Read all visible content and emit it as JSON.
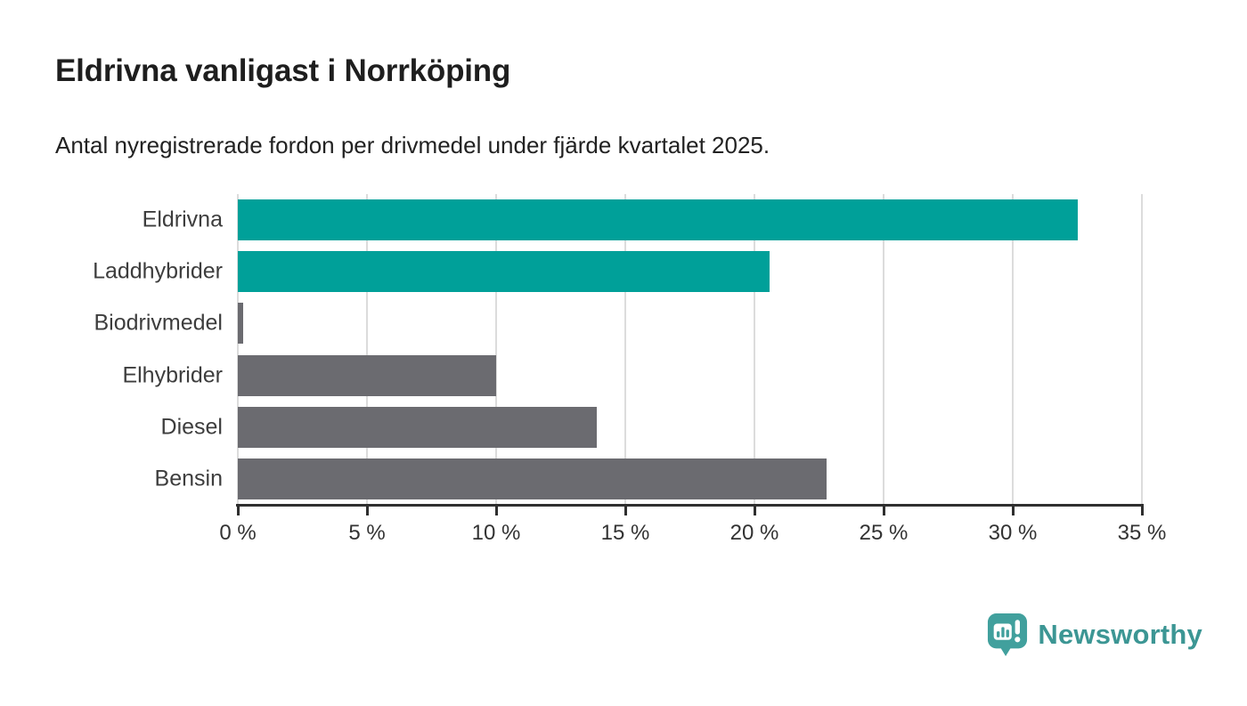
{
  "header": {
    "title": "Eldrivna vanligast i Norrköping",
    "subtitle": "Antal nyregistrerade fordon per drivmedel under fjärde kvartalet 2025."
  },
  "chart_data": {
    "type": "bar",
    "orientation": "horizontal",
    "title": "Eldrivna vanligast i Norrköping",
    "subtitle": "Antal nyregistrerade fordon per drivmedel under fjärde kvartalet 2025.",
    "categories": [
      "Eldrivna",
      "Laddhybrider",
      "Biodrivmedel",
      "Elhybrider",
      "Diesel",
      "Bensin"
    ],
    "values": [
      32.5,
      20.6,
      0.2,
      10.0,
      13.9,
      22.8
    ],
    "value_unit": "%",
    "bar_colors": [
      "#00a099",
      "#00a099",
      "#6b6b70",
      "#6b6b70",
      "#6b6b70",
      "#6b6b70"
    ],
    "xlabel": "",
    "ylabel": "",
    "xlim": [
      0,
      35
    ],
    "x_ticks": [
      0,
      5,
      10,
      15,
      20,
      25,
      30,
      35
    ],
    "x_tick_labels": [
      "0 %",
      "5 %",
      "10 %",
      "15 %",
      "20 %",
      "25 %",
      "30 %",
      "35 %"
    ],
    "grid": "vertical-gridlines-on",
    "legend": "none"
  },
  "branding": {
    "logo_text": "Newsworthy",
    "logo_icon": "newsworthy-pin-barchart-icon"
  },
  "colors": {
    "accent_teal": "#00a099",
    "bar_gray": "#6b6b70",
    "gridline": "#dcdcdc",
    "axis": "#2f2f2f",
    "title_text": "#1e1e1e",
    "label_text": "#3d3d3d",
    "logo_teal": "#3c9694"
  }
}
